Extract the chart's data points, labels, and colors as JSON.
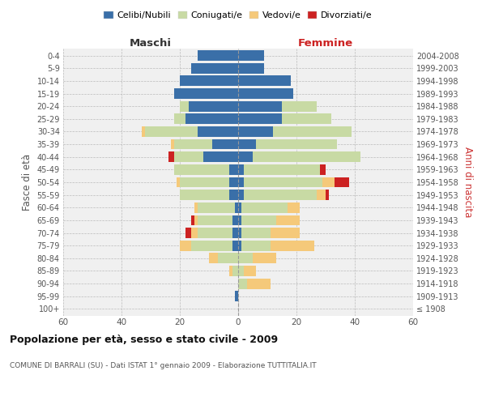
{
  "age_groups": [
    "100+",
    "95-99",
    "90-94",
    "85-89",
    "80-84",
    "75-79",
    "70-74",
    "65-69",
    "60-64",
    "55-59",
    "50-54",
    "45-49",
    "40-44",
    "35-39",
    "30-34",
    "25-29",
    "20-24",
    "15-19",
    "10-14",
    "5-9",
    "0-4"
  ],
  "birth_years": [
    "≤ 1908",
    "1909-1913",
    "1914-1918",
    "1919-1923",
    "1924-1928",
    "1929-1933",
    "1934-1938",
    "1939-1943",
    "1944-1948",
    "1949-1953",
    "1954-1958",
    "1959-1963",
    "1964-1968",
    "1969-1973",
    "1974-1978",
    "1979-1983",
    "1984-1988",
    "1989-1993",
    "1994-1998",
    "1999-2003",
    "2004-2008"
  ],
  "maschi": {
    "celibi": [
      0,
      1,
      0,
      0,
      0,
      2,
      2,
      2,
      1,
      3,
      3,
      3,
      12,
      9,
      14,
      18,
      17,
      22,
      20,
      16,
      14
    ],
    "coniugati": [
      0,
      0,
      0,
      2,
      7,
      14,
      12,
      12,
      13,
      17,
      17,
      19,
      10,
      13,
      18,
      4,
      3,
      0,
      0,
      0,
      0
    ],
    "vedovi": [
      0,
      0,
      0,
      1,
      3,
      4,
      2,
      1,
      1,
      0,
      1,
      0,
      0,
      1,
      1,
      0,
      0,
      0,
      0,
      0,
      0
    ],
    "divorziati": [
      0,
      0,
      0,
      0,
      0,
      0,
      2,
      1,
      0,
      0,
      0,
      0,
      2,
      0,
      0,
      0,
      0,
      0,
      0,
      0,
      0
    ]
  },
  "femmine": {
    "nubili": [
      0,
      0,
      0,
      0,
      0,
      1,
      1,
      1,
      1,
      2,
      2,
      2,
      5,
      6,
      12,
      15,
      15,
      19,
      18,
      9,
      9
    ],
    "coniugate": [
      0,
      0,
      3,
      2,
      5,
      10,
      10,
      12,
      16,
      25,
      27,
      26,
      37,
      28,
      27,
      17,
      12,
      0,
      0,
      0,
      0
    ],
    "vedove": [
      0,
      0,
      8,
      4,
      8,
      15,
      10,
      8,
      4,
      3,
      4,
      0,
      0,
      0,
      0,
      0,
      0,
      0,
      0,
      0,
      0
    ],
    "divorziate": [
      0,
      0,
      0,
      0,
      0,
      0,
      0,
      0,
      0,
      1,
      5,
      2,
      0,
      0,
      0,
      0,
      0,
      0,
      0,
      0,
      0
    ]
  },
  "colors": {
    "celibi": "#3a6fa8",
    "coniugati": "#c8daa4",
    "vedovi": "#f5c97a",
    "divorziati": "#cc2222"
  },
  "legend_labels": [
    "Celibi/Nubili",
    "Coniugati/e",
    "Vedovi/e",
    "Divorziati/e"
  ],
  "title": "Popolazione per età, sesso e stato civile - 2009",
  "subtitle": "COMUNE DI BARRALI (SU) - Dati ISTAT 1° gennaio 2009 - Elaborazione TUTTITALIA.IT",
  "xlabel_left": "Maschi",
  "xlabel_right": "Femmine",
  "ylabel_left": "Fasce di età",
  "ylabel_right": "Anni di nascita",
  "xlim": 60,
  "bg_color": "#ffffff",
  "plot_bg_color": "#f0f0f0"
}
